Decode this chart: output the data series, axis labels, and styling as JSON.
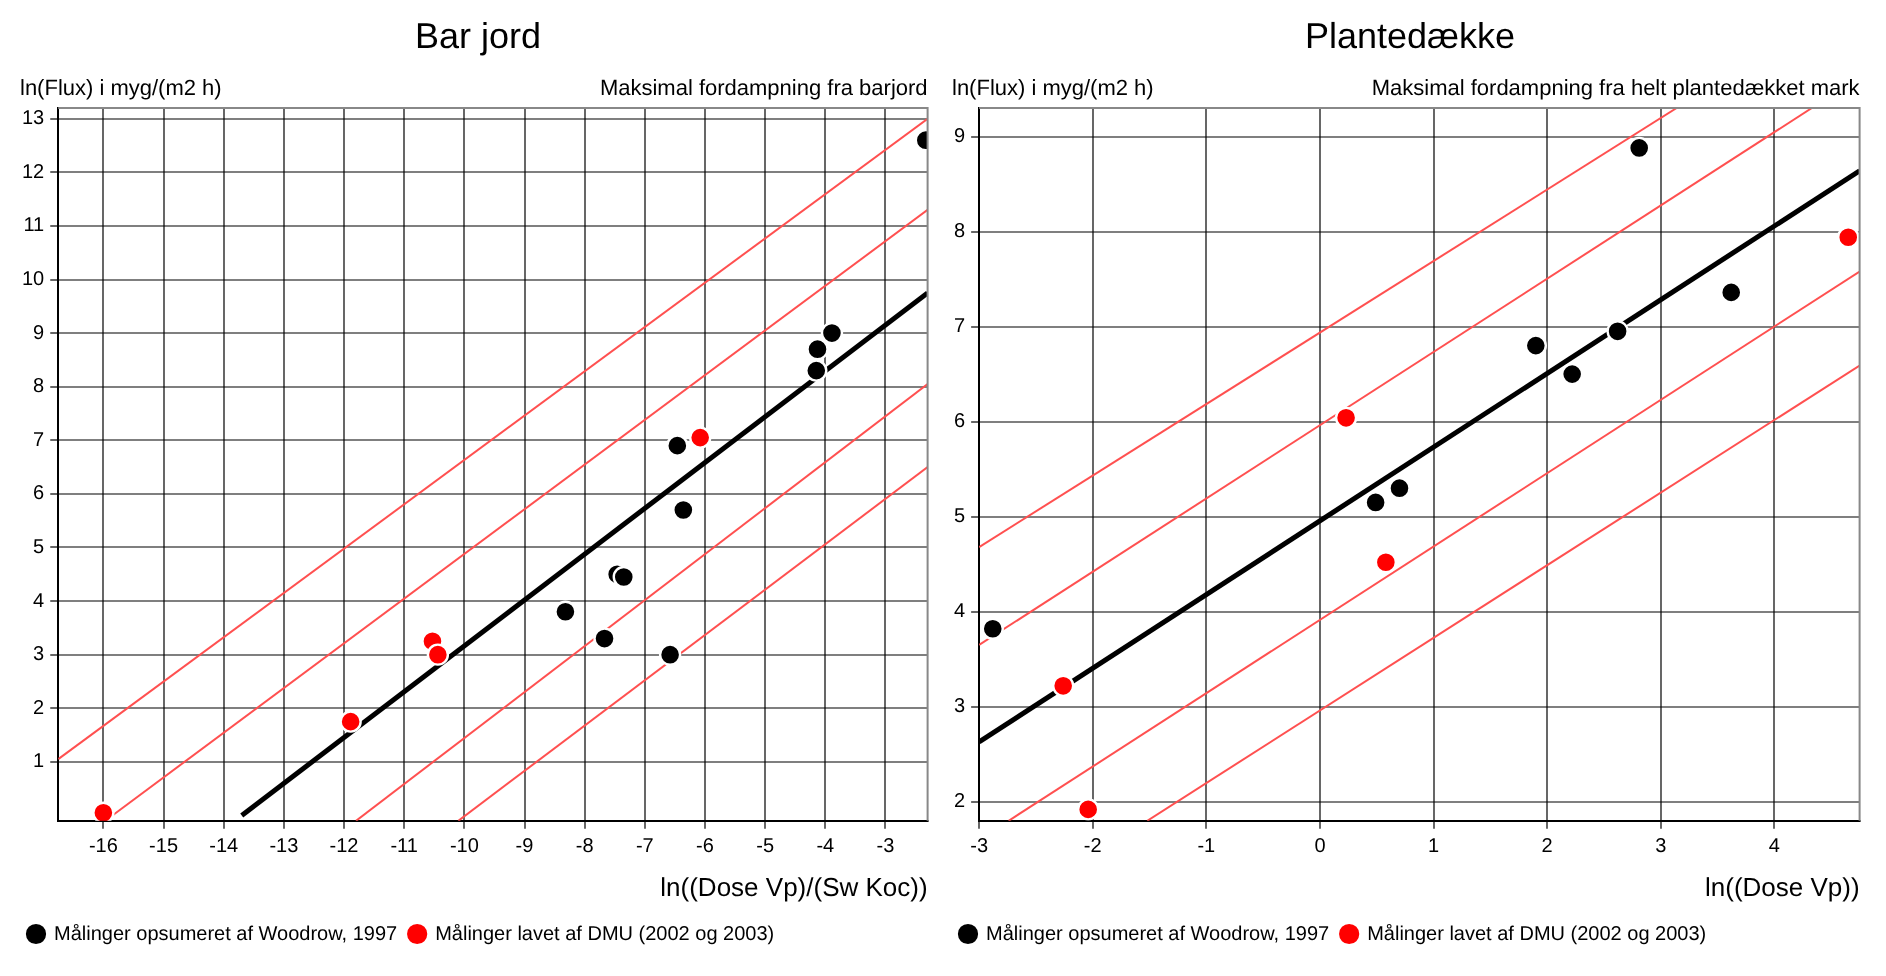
{
  "chart_data": [
    {
      "type": "scatter",
      "title": "Bar jord",
      "subtitle": "Maksimal fordampning fra barjord",
      "xlabel": "ln((Dose Vp)/(Sw Koc))",
      "ylabel": "ln(Flux) i myg/(m2 h)",
      "xlim": [
        -16.75,
        -2.3
      ],
      "ylim": [
        -0.1,
        13.2
      ],
      "xticks": [
        -16,
        -15,
        -14,
        -13,
        -12,
        -11,
        -10,
        -9,
        -8,
        -7,
        -6,
        -5,
        -4,
        -3
      ],
      "yticks": [
        1,
        2,
        3,
        4,
        5,
        6,
        7,
        8,
        9,
        10,
        11,
        12,
        13
      ],
      "grid": true,
      "legend": "bottom left",
      "marker": "circle",
      "series": [
        {
          "name": "Målinger opsumeret af Woodrow, 1997",
          "color": "#000000",
          "x": [
            -2.33,
            -4.13,
            -4.15,
            -3.89,
            -6.46,
            -6.36,
            -8.32,
            -7.67,
            -7.46,
            -7.35,
            -6.58
          ],
          "values": [
            12.6,
            8.7,
            8.3,
            9.0,
            6.9,
            5.7,
            3.8,
            3.3,
            4.5,
            4.45,
            3.0
          ]
        },
        {
          "name": "Målinger lavet af DMU (2002 og 2003)",
          "color": "#ff0000",
          "x": [
            -16.0,
            -11.89,
            -10.53,
            -10.44,
            -6.08
          ],
          "values": [
            0.05,
            1.75,
            3.25,
            3.0,
            7.05
          ]
        },
        {
          "type": "line",
          "color": "#000000",
          "marker": "none",
          "x": [
            -13.7,
            -2.3
          ],
          "values": [
            0,
            9.75
          ]
        },
        {
          "type": "line",
          "color": "#ff5050",
          "marker": "none",
          "x": [
            -16.75,
            -2.3
          ],
          "values": [
            1.05,
            13.0
          ]
        },
        {
          "type": "line",
          "color": "#ff5050",
          "marker": "none",
          "x": [
            -15.85,
            -2.3
          ],
          "values": [
            0,
            11.3
          ]
        },
        {
          "type": "line",
          "color": "#ff5050",
          "marker": "none",
          "x": [
            -11.8,
            -2.3
          ],
          "values": [
            -0.1,
            8.05
          ]
        },
        {
          "type": "line",
          "color": "#ff5050",
          "marker": "none",
          "x": [
            -10.1,
            -2.3
          ],
          "values": [
            -0.1,
            6.5
          ]
        }
      ]
    },
    {
      "type": "scatter",
      "title": "Plantedække",
      "subtitle": "Maksimal fordampning fra helt plantedækket mark",
      "xlabel": "ln((Dose Vp))",
      "ylabel": "ln(Flux) i myg/(m2 h)",
      "xlim": [
        -3,
        4.75
      ],
      "ylim": [
        1.8,
        9.3
      ],
      "xticks": [
        -3,
        -2,
        -1,
        0,
        1,
        2,
        3,
        4
      ],
      "yticks": [
        2,
        3,
        4,
        5,
        6,
        7,
        8,
        9
      ],
      "grid": true,
      "legend": "bottom left",
      "marker": "circle",
      "series": [
        {
          "name": "Målinger opsumeret af Woodrow, 1997",
          "color": "#000000",
          "x": [
            2.81,
            1.9,
            2.22,
            2.62,
            3.62,
            0.49,
            0.7,
            -2.88
          ],
          "values": [
            8.88,
            6.8,
            6.5,
            6.95,
            7.36,
            5.15,
            5.3,
            3.82
          ]
        },
        {
          "name": "Målinger lavet af DMU (2002 og 2003)",
          "color": "#ff0000",
          "x": [
            4.65,
            0.23,
            0.58,
            -2.26,
            -2.04
          ],
          "values": [
            7.94,
            6.04,
            4.52,
            3.22,
            1.92
          ]
        },
        {
          "type": "line",
          "color": "#000000",
          "marker": "none",
          "x": [
            -3,
            4.75
          ],
          "values": [
            2.63,
            8.64
          ]
        },
        {
          "type": "line",
          "color": "#ff5050",
          "marker": "none",
          "x": [
            -3,
            3.14
          ],
          "values": [
            4.68,
            9.3
          ]
        },
        {
          "type": "line",
          "color": "#ff5050",
          "marker": "none",
          "x": [
            -3,
            4.33
          ],
          "values": [
            3.65,
            9.3
          ]
        },
        {
          "type": "line",
          "color": "#ff5050",
          "marker": "none",
          "x": [
            -2.74,
            4.75
          ],
          "values": [
            1.8,
            7.58
          ]
        },
        {
          "type": "line",
          "color": "#ff5050",
          "marker": "none",
          "x": [
            -1.52,
            4.75
          ],
          "values": [
            1.8,
            6.59
          ]
        }
      ]
    }
  ]
}
